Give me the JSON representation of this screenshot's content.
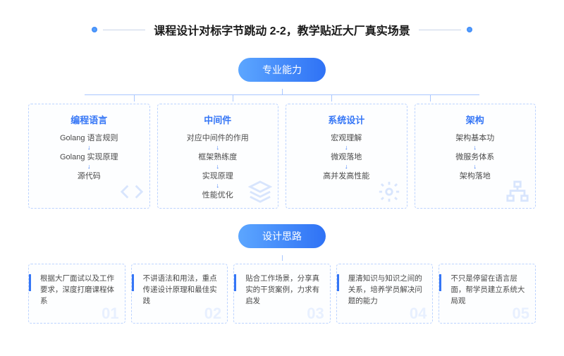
{
  "header": {
    "title": "课程设计对标字节跳动 2-2，教学贴近大厂真实场景"
  },
  "section1": {
    "pill": "专业能力",
    "hbar_width": 560,
    "tick_positions_pct": [
      12.5,
      37.5,
      62.5,
      87.5
    ],
    "cards": [
      {
        "title": "编程语言",
        "items": [
          "Golang 语言规则",
          "Golang 实现原理",
          "源代码"
        ],
        "icon": "code"
      },
      {
        "title": "中间件",
        "items": [
          "对应中间件的作用",
          "框架熟练度",
          "实现原理",
          "性能优化"
        ],
        "icon": "stack"
      },
      {
        "title": "系统设计",
        "items": [
          "宏观理解",
          "微观落地",
          "高并发高性能"
        ],
        "icon": "gear"
      },
      {
        "title": "架构",
        "items": [
          "架构基本功",
          "微服务体系",
          "架构落地"
        ],
        "icon": "tree"
      }
    ]
  },
  "section2": {
    "pill": "设计思路",
    "ideas": [
      {
        "num": "01",
        "text": "根据大厂面试以及工作要求，深度打磨课程体系"
      },
      {
        "num": "02",
        "text": "不讲语法和用法，重点传递设计原理和最佳实践"
      },
      {
        "num": "03",
        "text": "贴合工作场景，分享真实的干货案例，力求有启发"
      },
      {
        "num": "04",
        "text": "厘清知识与知识之间的关系，培养学员解决问题的能力"
      },
      {
        "num": "05",
        "text": "不只是停留在语言层面，帮学员建立系统大局观"
      }
    ]
  },
  "colors": {
    "accent": "#3576f6",
    "dashed_border": "#bcd3ff",
    "text": "#4a4a4a",
    "num_ghost": "#e8f0ff"
  }
}
